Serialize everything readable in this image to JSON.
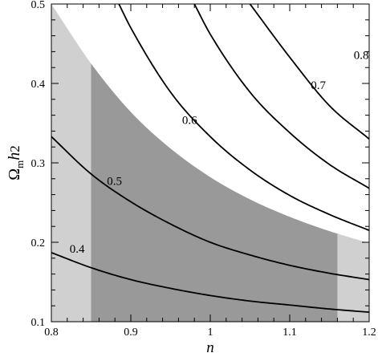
{
  "chart_data": {
    "type": "line",
    "title": "",
    "xlabel": "n",
    "ylabel": "Ωmh2",
    "ylabel_parts": {
      "main": "Ω",
      "sub": "m",
      "var": "h",
      "exp": "2"
    },
    "xlim": [
      0.8,
      1.2
    ],
    "ylim": [
      0.1,
      0.5
    ],
    "x_ticks": [
      0.8,
      0.9,
      1.0,
      1.1,
      1.2
    ],
    "x_tick_labels": [
      "0.8",
      "0.9",
      "1",
      "1.1",
      "1.2"
    ],
    "y_ticks": [
      0.1,
      0.2,
      0.3,
      0.4,
      0.5
    ],
    "y_tick_labels": [
      "0.1",
      "0.2",
      "0.3",
      "0.4",
      "0.5"
    ],
    "grid": false,
    "colors": {
      "light_region": "#d0d0d0",
      "dark_region": "#999999",
      "contour": "#000000",
      "background": "#ffffff"
    },
    "shaded_regions": [
      {
        "name": "light",
        "description": "allowed region (full range of n)",
        "upper_boundary": {
          "x": [
            0.8,
            0.85,
            0.9,
            0.95,
            1.0,
            1.05,
            1.1,
            1.15,
            1.2
          ],
          "y": [
            0.5,
            0.425,
            0.364,
            0.318,
            0.282,
            0.254,
            0.232,
            0.214,
            0.199
          ]
        }
      },
      {
        "name": "dark",
        "description": "allowed region restricted in n",
        "x_range": [
          0.85,
          1.16
        ]
      }
    ],
    "series": [
      {
        "label": "0.4",
        "x": [
          0.8,
          0.85,
          0.9,
          0.95,
          1.0,
          1.05,
          1.1,
          1.15,
          1.2
        ],
        "y": [
          0.187,
          0.168,
          0.153,
          0.142,
          0.133,
          0.126,
          0.121,
          0.116,
          0.112
        ]
      },
      {
        "label": "0.5",
        "x": [
          0.8,
          0.85,
          0.9,
          0.95,
          1.0,
          1.05,
          1.1,
          1.15,
          1.2
        ],
        "y": [
          0.333,
          0.286,
          0.251,
          0.223,
          0.2,
          0.184,
          0.171,
          0.161,
          0.153
        ]
      },
      {
        "label": "0.6",
        "x": [
          0.885,
          0.9,
          0.95,
          1.0,
          1.05,
          1.1,
          1.15,
          1.2
        ],
        "y": [
          0.5,
          0.47,
          0.389,
          0.333,
          0.291,
          0.259,
          0.235,
          0.215
        ]
      },
      {
        "label": "0.7",
        "x": [
          0.98,
          1.0,
          1.05,
          1.1,
          1.15,
          1.2
        ],
        "y": [
          0.5,
          0.462,
          0.389,
          0.338,
          0.298,
          0.268
        ]
      },
      {
        "label": "0.8",
        "x": [
          1.05,
          1.1,
          1.15,
          1.2
        ],
        "y": [
          0.5,
          0.433,
          0.372,
          0.33
        ]
      }
    ]
  }
}
